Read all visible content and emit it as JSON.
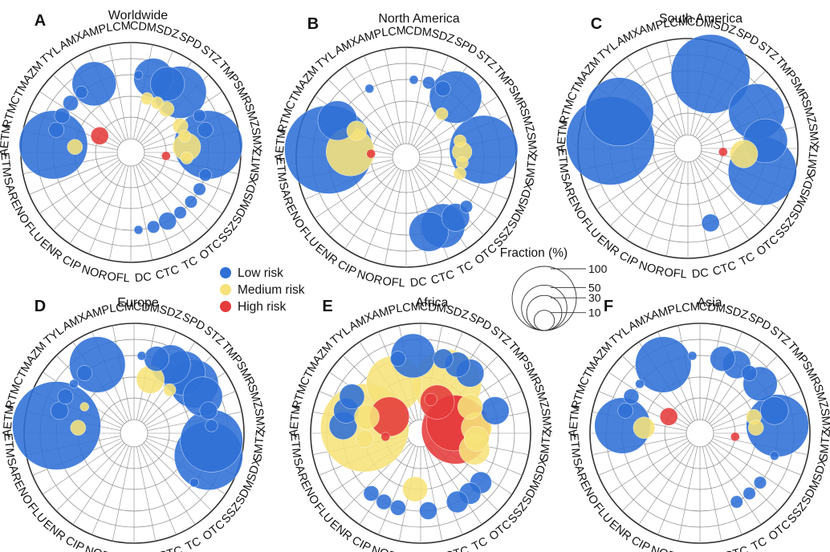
{
  "colors": {
    "low": "#2f6fd6",
    "medium": "#f6e27a",
    "high": "#e53b3b",
    "grid": "#888888"
  },
  "legend": {
    "items": [
      {
        "label": "Low risk",
        "color": "#2f6fd6"
      },
      {
        "label": "Medium risk",
        "color": "#f6e27a"
      },
      {
        "label": "High risk",
        "color": "#e53b3b"
      }
    ],
    "size_title": "Fraction (%)",
    "size_values": [
      100,
      50,
      30,
      10
    ]
  },
  "chart_data": [
    {
      "type": "scatter",
      "panel": "A",
      "title": "Worldwide",
      "radial_rings": [
        "High risk",
        "Medium risk",
        "Low risk"
      ],
      "categories": [
        "CDM",
        "SDZ",
        "SPD",
        "STZ",
        "TMP",
        "SMR",
        "SMZ",
        "SMX",
        "SMTZ",
        "SDX",
        "SDM",
        "SSZ",
        "OTC",
        "TC",
        "CTC",
        "DC",
        "OFL",
        "NOR",
        "CIP",
        "ENR",
        "FLU",
        "ENO",
        "SAR",
        "ETM",
        "AETM",
        "RTM",
        "CTM",
        "AZM",
        "TYL",
        "AMX",
        "AMP",
        "LCM"
      ],
      "points": [
        {
          "cat": "CDM",
          "risk": "low",
          "value": 1
        },
        {
          "cat": "SDZ",
          "risk": "low",
          "value": 20
        },
        {
          "cat": "SDZ",
          "risk": "medium",
          "value": 2
        },
        {
          "cat": "SPD",
          "risk": "low",
          "value": 15
        },
        {
          "cat": "SPD",
          "risk": "medium",
          "value": 2
        },
        {
          "cat": "STZ",
          "risk": "low",
          "value": 35
        },
        {
          "cat": "STZ",
          "risk": "medium",
          "value": 3
        },
        {
          "cat": "SMR",
          "risk": "low",
          "value": 2
        },
        {
          "cat": "SMR",
          "risk": "medium",
          "value": 3
        },
        {
          "cat": "SMZ",
          "risk": "low",
          "value": 3
        },
        {
          "cat": "SMZ",
          "risk": "medium",
          "value": 2
        },
        {
          "cat": "SMX",
          "risk": "low",
          "value": 60
        },
        {
          "cat": "SMX",
          "risk": "medium",
          "value": 10
        },
        {
          "cat": "SMTZ",
          "risk": "medium",
          "value": 2
        },
        {
          "cat": "SMTZ",
          "risk": "high",
          "value": 1
        },
        {
          "cat": "SDX",
          "risk": "low",
          "value": 2
        },
        {
          "cat": "SDM",
          "risk": "low",
          "value": 2
        },
        {
          "cat": "SSZ",
          "risk": "low",
          "value": 2
        },
        {
          "cat": "OTC",
          "risk": "low",
          "value": 2
        },
        {
          "cat": "TC",
          "risk": "low",
          "value": 4
        },
        {
          "cat": "CTC",
          "risk": "low",
          "value": 2
        },
        {
          "cat": "DC",
          "risk": "low",
          "value": 1
        },
        {
          "cat": "AETM",
          "risk": "low",
          "value": 60
        },
        {
          "cat": "AETM",
          "risk": "medium",
          "value": 3
        },
        {
          "cat": "RTM",
          "risk": "low",
          "value": 3
        },
        {
          "cat": "CTM",
          "risk": "low",
          "value": 3
        },
        {
          "cat": "CTM",
          "risk": "high",
          "value": 4
        },
        {
          "cat": "AZM",
          "risk": "low",
          "value": 3
        },
        {
          "cat": "TYL",
          "risk": "low",
          "value": 2
        },
        {
          "cat": "AMX",
          "risk": "low",
          "value": 25
        }
      ]
    },
    {
      "type": "scatter",
      "panel": "B",
      "title": "North America",
      "radial_rings": [
        "High risk",
        "Medium risk",
        "Low risk"
      ],
      "categories": [
        "CDM",
        "SDZ",
        "SPD",
        "STZ",
        "TMP",
        "SMR",
        "SMZ",
        "SMX",
        "SMTZ",
        "SDX",
        "SDM",
        "SSZ",
        "OTC",
        "TC",
        "CTC",
        "DC",
        "OFL",
        "NOR",
        "CIP",
        "ENR",
        "FLU",
        "ENO",
        "SAR",
        "ETM",
        "AETM",
        "RTM",
        "CTM",
        "AZM",
        "TYL",
        "AMX",
        "AMP",
        "LCM"
      ],
      "points": [
        {
          "cat": "CDM",
          "risk": "low",
          "value": 1
        },
        {
          "cat": "SDZ",
          "risk": "low",
          "value": 2
        },
        {
          "cat": "SPD",
          "risk": "low",
          "value": 3
        },
        {
          "cat": "STZ",
          "risk": "low",
          "value": 35
        },
        {
          "cat": "STZ",
          "risk": "medium",
          "value": 2
        },
        {
          "cat": "SMZ",
          "risk": "medium",
          "value": 2
        },
        {
          "cat": "SMX",
          "risk": "low",
          "value": 60
        },
        {
          "cat": "SMX",
          "risk": "medium",
          "value": 5
        },
        {
          "cat": "SMTZ",
          "risk": "medium",
          "value": 2
        },
        {
          "cat": "SDX",
          "risk": "medium",
          "value": 2
        },
        {
          "cat": "SSZ",
          "risk": "low",
          "value": 2
        },
        {
          "cat": "OTC",
          "risk": "low",
          "value": 10
        },
        {
          "cat": "TC",
          "risk": "low",
          "value": 25
        },
        {
          "cat": "CTC",
          "risk": "low",
          "value": 20
        },
        {
          "cat": "AETM",
          "risk": "low",
          "value": 100
        },
        {
          "cat": "AETM",
          "risk": "medium",
          "value": 30
        },
        {
          "cat": "AETM",
          "risk": "high",
          "value": 1
        },
        {
          "cat": "CTM",
          "risk": "low",
          "value": 20
        },
        {
          "cat": "CTM",
          "risk": "medium",
          "value": 5
        },
        {
          "cat": "AMX",
          "risk": "low",
          "value": 1
        }
      ]
    },
    {
      "type": "scatter",
      "panel": "C",
      "title": "South America",
      "radial_rings": [
        "High risk",
        "Medium risk",
        "Low risk"
      ],
      "categories": [
        "CDM",
        "SDZ",
        "SPD",
        "STZ",
        "TMP",
        "SMR",
        "SMZ",
        "SMX",
        "SMTZ",
        "SDX",
        "SDM",
        "SSZ",
        "OTC",
        "TC",
        "CTC",
        "DC",
        "OFL",
        "NOR",
        "CIP",
        "ENR",
        "FLU",
        "ENO",
        "SAR",
        "ETM",
        "AETM",
        "RTM",
        "CTM",
        "AZM",
        "TYL",
        "AMX",
        "AMP",
        "LCM"
      ],
      "points": [
        {
          "cat": "SDZ",
          "risk": "low",
          "value": 80
        },
        {
          "cat": "SMR",
          "risk": "low",
          "value": 40
        },
        {
          "cat": "SMX",
          "risk": "low",
          "value": 25
        },
        {
          "cat": "SMTZ",
          "risk": "medium",
          "value": 10
        },
        {
          "cat": "SMTZ",
          "risk": "high",
          "value": 1
        },
        {
          "cat": "SDX",
          "risk": "low",
          "value": 60
        },
        {
          "cat": "CTC",
          "risk": "low",
          "value": 4
        },
        {
          "cat": "AETM",
          "risk": "low",
          "value": 100
        },
        {
          "cat": "CTM",
          "risk": "low",
          "value": 60
        }
      ]
    },
    {
      "type": "scatter",
      "panel": "D",
      "title": "Europe",
      "radial_rings": [
        "High risk",
        "Medium risk",
        "Low risk"
      ],
      "categories": [
        "CDM",
        "SDZ",
        "SPD",
        "STZ",
        "TMP",
        "SMR",
        "SMZ",
        "SMX",
        "SMTZ",
        "SDX",
        "SDM",
        "SSZ",
        "OTC",
        "TC",
        "CTC",
        "DC",
        "OFL",
        "NOR",
        "CIP",
        "ENR",
        "FLU",
        "ENO",
        "SAR",
        "ETM",
        "AETM",
        "RTM",
        "CTM",
        "AZM",
        "TYL",
        "AMX",
        "AMP",
        "LCM"
      ],
      "points": [
        {
          "cat": "CDM",
          "risk": "low",
          "value": 1
        },
        {
          "cat": "SDZ",
          "risk": "low",
          "value": 8
        },
        {
          "cat": "SDZ",
          "risk": "medium",
          "value": 10
        },
        {
          "cat": "SPD",
          "risk": "low",
          "value": 20
        },
        {
          "cat": "STZ",
          "risk": "low",
          "value": 25
        },
        {
          "cat": "STZ",
          "risk": "medium",
          "value": 2
        },
        {
          "cat": "TMP",
          "risk": "low",
          "value": 30
        },
        {
          "cat": "SMR",
          "risk": "low",
          "value": 20
        },
        {
          "cat": "SMZ",
          "risk": "low",
          "value": 4
        },
        {
          "cat": "SMX",
          "risk": "low",
          "value": 2
        },
        {
          "cat": "SMTZ",
          "risk": "low",
          "value": 50
        },
        {
          "cat": "SDX",
          "risk": "low",
          "value": 60
        },
        {
          "cat": "SSZ",
          "risk": "low",
          "value": 1
        },
        {
          "cat": "AETM",
          "risk": "low",
          "value": 100
        },
        {
          "cat": "AETM",
          "risk": "medium",
          "value": 3
        },
        {
          "cat": "RTM",
          "risk": "low",
          "value": 4
        },
        {
          "cat": "CTM",
          "risk": "low",
          "value": 3
        },
        {
          "cat": "CTM",
          "risk": "medium",
          "value": 1
        },
        {
          "cat": "AZM",
          "risk": "low",
          "value": 1
        },
        {
          "cat": "TYL",
          "risk": "low",
          "value": 3
        },
        {
          "cat": "AMX",
          "risk": "low",
          "value": 40
        }
      ]
    },
    {
      "type": "scatter",
      "panel": "E",
      "title": "Africa",
      "radial_rings": [
        "High risk",
        "Medium risk",
        "Low risk"
      ],
      "categories": [
        "CDM",
        "SDZ",
        "SPD",
        "STZ",
        "TMP",
        "SMR",
        "SMZ",
        "SMX",
        "SMTZ",
        "SDX",
        "SDM",
        "SSZ",
        "OTC",
        "TC",
        "CTC",
        "DC",
        "OFL",
        "NOR",
        "CIP",
        "ENR",
        "FLU",
        "ENO",
        "SAR",
        "ETM",
        "AETM",
        "RTM",
        "CTM",
        "AZM",
        "TYL",
        "AMX",
        "AMP",
        "LCM"
      ],
      "points": [
        {
          "cat": "LCM",
          "risk": "low",
          "value": 25
        },
        {
          "cat": "SDZ",
          "risk": "low",
          "value": 5
        },
        {
          "cat": "SDZ",
          "risk": "high",
          "value": 2
        },
        {
          "cat": "SPD",
          "risk": "low",
          "value": 8
        },
        {
          "cat": "SPD",
          "risk": "medium",
          "value": 60
        },
        {
          "cat": "SPD",
          "risk": "high",
          "value": 15
        },
        {
          "cat": "STZ",
          "risk": "low",
          "value": 10
        },
        {
          "cat": "SMR",
          "risk": "medium",
          "value": 8
        },
        {
          "cat": "SMZ",
          "risk": "low",
          "value": 10
        },
        {
          "cat": "SMZ",
          "risk": "high",
          "value": 40
        },
        {
          "cat": "SMX",
          "risk": "medium",
          "value": 12
        },
        {
          "cat": "SMX",
          "risk": "high",
          "value": 60
        },
        {
          "cat": "SMTZ",
          "risk": "medium",
          "value": 8
        },
        {
          "cat": "SDX",
          "risk": "medium",
          "value": 12
        },
        {
          "cat": "SSZ",
          "risk": "low",
          "value": 6
        },
        {
          "cat": "OTC",
          "risk": "low",
          "value": 6
        },
        {
          "cat": "TC",
          "risk": "low",
          "value": 6
        },
        {
          "cat": "DC",
          "risk": "low",
          "value": 4
        },
        {
          "cat": "OFL",
          "risk": "medium",
          "value": 8
        },
        {
          "cat": "CIP",
          "risk": "low",
          "value": 3
        },
        {
          "cat": "NOR",
          "risk": "low",
          "value": 3
        },
        {
          "cat": "ENR",
          "risk": "low",
          "value": 3
        },
        {
          "cat": "ETM",
          "risk": "medium",
          "value": 4
        },
        {
          "cat": "ETM",
          "risk": "high",
          "value": 1
        },
        {
          "cat": "AETM",
          "risk": "low",
          "value": 10
        },
        {
          "cat": "AETM",
          "risk": "medium",
          "value": 100
        },
        {
          "cat": "RTM",
          "risk": "low",
          "value": 8
        },
        {
          "cat": "RTM",
          "risk": "medium",
          "value": 8
        },
        {
          "cat": "CTM",
          "risk": "low",
          "value": 8
        },
        {
          "cat": "CTM",
          "risk": "high",
          "value": 20
        },
        {
          "cat": "AMX",
          "risk": "medium",
          "value": 40
        },
        {
          "cat": "AMP",
          "risk": "low",
          "value": 3
        }
      ]
    },
    {
      "type": "scatter",
      "panel": "F",
      "title": "Asia",
      "radial_rings": [
        "High risk",
        "Medium risk",
        "Low risk"
      ],
      "categories": [
        "CDM",
        "SDZ",
        "SPD",
        "STZ",
        "TMP",
        "SMR",
        "SMZ",
        "SMX",
        "SMTZ",
        "SDX",
        "SDM",
        "SSZ",
        "OTC",
        "TC",
        "CTC",
        "DC",
        "OFL",
        "NOR",
        "CIP",
        "ENR",
        "FLU",
        "ENO",
        "SAR",
        "ETM",
        "AETM",
        "RTM",
        "CTM",
        "AZM",
        "TYL",
        "AMX",
        "AMP",
        "LCM"
      ],
      "points": [
        {
          "cat": "LCM",
          "risk": "low",
          "value": 1
        },
        {
          "cat": "SDZ",
          "risk": "low",
          "value": 8
        },
        {
          "cat": "SPD",
          "risk": "low",
          "value": 10
        },
        {
          "cat": "STZ",
          "risk": "low",
          "value": 3
        },
        {
          "cat": "TMP",
          "risk": "low",
          "value": 15
        },
        {
          "cat": "SMZ",
          "risk": "low",
          "value": 10
        },
        {
          "cat": "SMZ",
          "risk": "medium",
          "value": 3
        },
        {
          "cat": "SMX",
          "risk": "low",
          "value": 50
        },
        {
          "cat": "SMX",
          "risk": "medium",
          "value": 3
        },
        {
          "cat": "SMTZ",
          "risk": "high",
          "value": 1
        },
        {
          "cat": "SDX",
          "risk": "low",
          "value": 1
        },
        {
          "cat": "SSZ",
          "risk": "low",
          "value": 2
        },
        {
          "cat": "OTC",
          "risk": "low",
          "value": 2
        },
        {
          "cat": "TC",
          "risk": "low",
          "value": 2
        },
        {
          "cat": "AETM",
          "risk": "low",
          "value": 40
        },
        {
          "cat": "AETM",
          "risk": "medium",
          "value": 6
        },
        {
          "cat": "RTM",
          "risk": "low",
          "value": 3
        },
        {
          "cat": "CTM",
          "risk": "low",
          "value": 3
        },
        {
          "cat": "CTM",
          "risk": "high",
          "value": 4
        },
        {
          "cat": "AZM",
          "risk": "low",
          "value": 1
        },
        {
          "cat": "AMX",
          "risk": "low",
          "value": 40
        }
      ]
    }
  ]
}
